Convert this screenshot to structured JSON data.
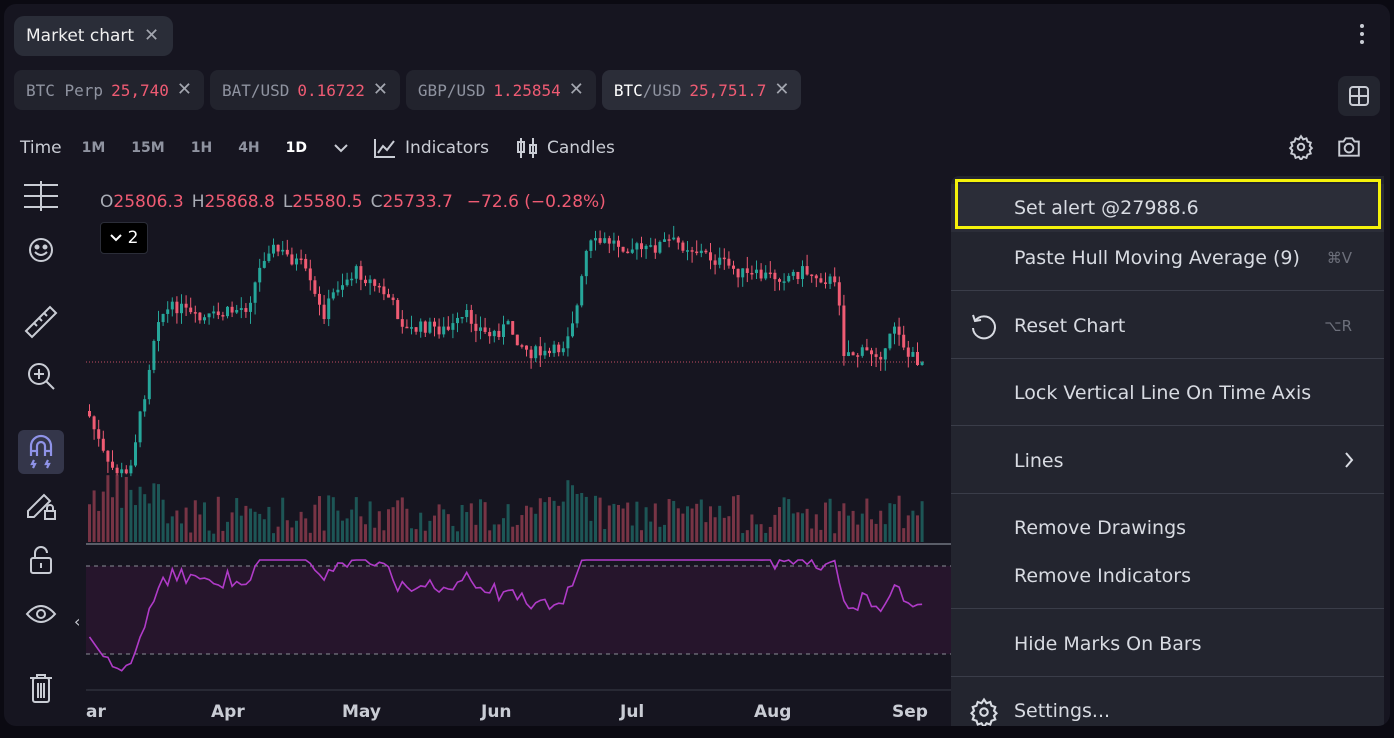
{
  "window": {
    "tab_title": "Market chart"
  },
  "symbols": [
    {
      "base": "BTC Perp",
      "quote": "",
      "price": "25,740",
      "active": false
    },
    {
      "base": "BAT/USD",
      "quote": "",
      "price": "0.16722",
      "active": false
    },
    {
      "base": "GBP/USD",
      "quote": "",
      "price": "1.25854",
      "active": false
    },
    {
      "base": "BTC",
      "quote": "/USD",
      "price": "25,751.7",
      "active": true
    }
  ],
  "toolbar": {
    "time_label": "Time",
    "timeframes": [
      "1M",
      "15M",
      "1H",
      "4H",
      "1D"
    ],
    "selected_timeframe": "1D",
    "indicators_label": "Indicators",
    "candles_label": "Candles"
  },
  "ohlc": {
    "o_key": "O",
    "o_val": "25806.3",
    "h_key": "H",
    "h_val": "25868.8",
    "l_key": "L",
    "l_val": "25580.5",
    "c_key": "C",
    "c_val": "25733.7",
    "change": "−72.6 (−0.28%)"
  },
  "indicator_count": "2",
  "x_axis": [
    "ar",
    "Apr",
    "May",
    "Jun",
    "Jul",
    "Aug",
    "Sep"
  ],
  "context_menu": {
    "set_alert": "Set alert @27988.6",
    "paste": "Paste Hull Moving Average (9)",
    "paste_shortcut": "⌘V",
    "reset": "Reset Chart",
    "reset_shortcut": "⌥R",
    "lock_line": "Lock Vertical Line On Time Axis",
    "lines": "Lines",
    "remove_drawings": "Remove Drawings",
    "remove_indicators": "Remove Indicators",
    "hide_marks": "Hide Marks On Bars",
    "settings": "Settings..."
  },
  "colors": {
    "up": "#26a69a",
    "down": "#ef5b73",
    "rsi": "#b03bc8",
    "highlight": "#f5f20b"
  }
}
